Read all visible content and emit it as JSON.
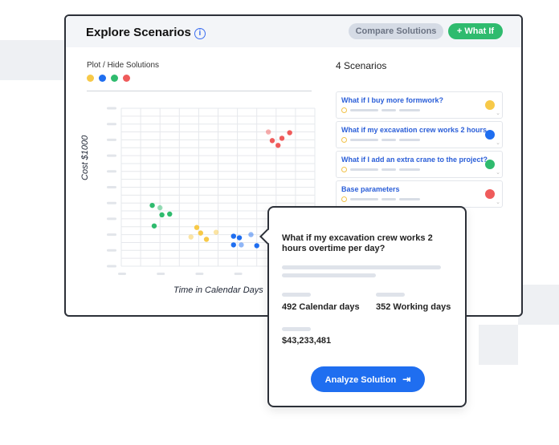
{
  "header": {
    "title": "Explore Scenarios",
    "compare_label": "Compare Solutions",
    "what_if_label": "+ What If"
  },
  "plot": {
    "label": "Plot / Hide Solutions",
    "colors": [
      "#f7c948",
      "#1f6ef0",
      "#2fbb6e",
      "#ef5b5b"
    ]
  },
  "chart_data": {
    "type": "scatter",
    "xlabel": "Time in Calendar Days",
    "ylabel": "Cost $1000",
    "grid": true,
    "note_units": "grid cells (axis tick labels are not printed)",
    "xlim": [
      0,
      10
    ],
    "ylim": [
      0,
      20
    ],
    "series": [
      {
        "color": "#f7c948",
        "points": [
          [
            3.9,
            4.9
          ],
          [
            4.1,
            4.2
          ],
          [
            3.6,
            3.7,
            "faded"
          ],
          [
            4.4,
            3.4
          ],
          [
            4.9,
            4.3,
            "faded"
          ]
        ]
      },
      {
        "color": "#1f6ef0",
        "points": [
          [
            5.8,
            3.8
          ],
          [
            6.1,
            3.6
          ],
          [
            6.7,
            4.0,
            "faded"
          ],
          [
            5.8,
            2.7
          ],
          [
            6.2,
            2.7,
            "faded"
          ],
          [
            7.0,
            2.6
          ]
        ]
      },
      {
        "color": "#2fbb6e",
        "points": [
          [
            1.6,
            7.7
          ],
          [
            2.0,
            7.4,
            "faded"
          ],
          [
            2.1,
            6.5
          ],
          [
            2.5,
            6.6
          ],
          [
            1.7,
            5.1
          ]
        ]
      },
      {
        "color": "#ef5b5b",
        "points": [
          [
            7.6,
            17.0,
            "faded"
          ],
          [
            7.8,
            15.9
          ],
          [
            8.3,
            16.2
          ],
          [
            8.7,
            16.9
          ],
          [
            8.1,
            15.3
          ]
        ]
      }
    ]
  },
  "scenarios": {
    "count_label": "4 Scenarios",
    "items": [
      {
        "title": "What if I buy more formwork?",
        "color": "#f7c948"
      },
      {
        "title": "What if my excavation crew works 2 hours...",
        "color": "#1f6ef0"
      },
      {
        "title": "What if I add an extra crane to the project?",
        "color": "#2fbb6e"
      },
      {
        "title": "Base parameters",
        "color": "#ef5b5b"
      }
    ]
  },
  "popup": {
    "question": "What if my excavation crew works 2 hours overtime per day?",
    "calendar_days": "492 Calendar days",
    "working_days": "352 Working days",
    "cost": "$43,233,481",
    "analyze_label": "Analyze Solution"
  }
}
